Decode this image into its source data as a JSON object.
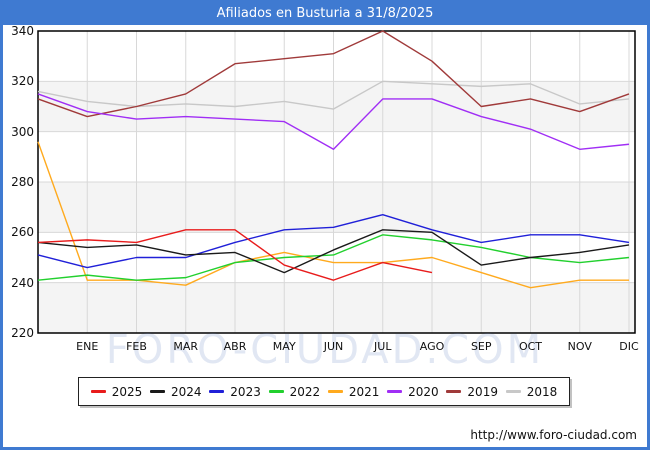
{
  "window": {
    "title": "Afiliados en Busturia a 31/8/2025"
  },
  "watermark": "FORO-CIUDAD.COM",
  "footer": {
    "url": "http://www.foro-ciudad.com"
  },
  "colors": {
    "frame_blue": "#3f7ad1",
    "plot_border": "#000000",
    "gridline": "#d8d8d8",
    "shaded_band": "#f4f4f4",
    "axis_text": "#111111"
  },
  "chart_data": {
    "type": "line",
    "title": "Afiliados en Busturia a 31/8/2025",
    "xlabel": "",
    "ylabel": "",
    "categories": [
      "ENE",
      "FEB",
      "MAR",
      "ABR",
      "MAY",
      "JUN",
      "JUL",
      "AGO",
      "SEP",
      "OCT",
      "NOV",
      "DIC"
    ],
    "ylim": [
      220,
      340
    ],
    "y_ticks": [
      220,
      240,
      260,
      280,
      300,
      320,
      340
    ],
    "shaded_bands": [
      [
        220,
        240
      ],
      [
        260,
        280
      ],
      [
        300,
        320
      ]
    ],
    "grid": true,
    "legend_position": "bottom",
    "note": "First value of each series is plotted at the plot left edge (lead-in point before ENE); series 2025 ends at AGO.",
    "series": [
      {
        "name": "2025",
        "color": "#e81c1c",
        "values": [
          256,
          257,
          256,
          261,
          261,
          247,
          241,
          248,
          244
        ]
      },
      {
        "name": "2024",
        "color": "#1a1a1a",
        "values": [
          256,
          254,
          255,
          251,
          252,
          244,
          253,
          261,
          260,
          247,
          250,
          252,
          255
        ]
      },
      {
        "name": "2023",
        "color": "#2020d8",
        "values": [
          251,
          246,
          250,
          250,
          256,
          261,
          262,
          267,
          261,
          256,
          259,
          259,
          256
        ]
      },
      {
        "name": "2022",
        "color": "#22d02e",
        "values": [
          241,
          243,
          241,
          242,
          248,
          250,
          251,
          259,
          257,
          254,
          250,
          248,
          250
        ]
      },
      {
        "name": "2021",
        "color": "#ffaa1e",
        "values": [
          296,
          241,
          241,
          239,
          248,
          252,
          248,
          248,
          250,
          244,
          238,
          241,
          241
        ]
      },
      {
        "name": "2020",
        "color": "#a02ef5",
        "values": [
          315,
          308,
          305,
          306,
          305,
          304,
          293,
          313,
          313,
          306,
          301,
          293,
          295
        ]
      },
      {
        "name": "2019",
        "color": "#a03a3a",
        "values": [
          313,
          306,
          310,
          315,
          327,
          329,
          331,
          340,
          328,
          310,
          313,
          308,
          315
        ]
      },
      {
        "name": "2018",
        "color": "#c8c8c8",
        "values": [
          316,
          312,
          310,
          311,
          310,
          312,
          309,
          320,
          319,
          318,
          319,
          311,
          313
        ]
      }
    ]
  }
}
